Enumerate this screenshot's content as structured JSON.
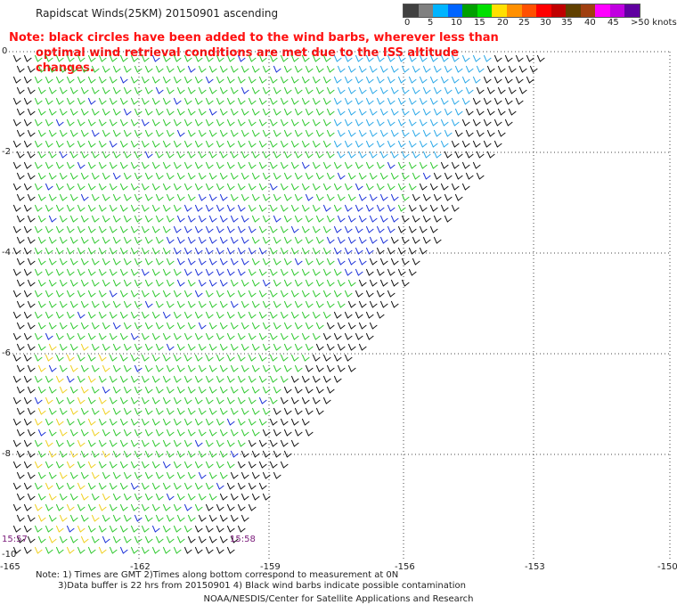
{
  "title": "Rapidscat Winds(25KM) 20150901 ascending",
  "note": {
    "line1": "Note: black circles have been added to the wind barbs, wherever less than",
    "line2": "optimal wind retrieval conditions are met due to the ISS altitude changes."
  },
  "legend": {
    "labels": [
      "0",
      "5",
      "10",
      "15",
      "20",
      "25",
      "30",
      "35",
      "40",
      "45",
      ">50 knots"
    ],
    "colors": [
      "#404040",
      "#808080",
      "#00b4ff",
      "#0064ff",
      "#00a000",
      "#00e000",
      "#ffe000",
      "#ff9000",
      "#ff5000",
      "#ff0000",
      "#c00000",
      "#604000",
      "#a04010",
      "#ff00ff",
      "#c000e0",
      "#6000a0"
    ]
  },
  "axes": {
    "lat_labels": [
      "0",
      "-2",
      "-4",
      "-6",
      "-8",
      "-10"
    ],
    "lon_labels": [
      "-165",
      "-162",
      "-159",
      "-156",
      "-153",
      "-150"
    ]
  },
  "time_labels": [
    "15:57",
    "15:58"
  ],
  "footnote": {
    "line1": "Note: 1) Times are GMT 2)Times along bottom correspond to measurement at 0N",
    "line2": "3)Data buffer is 22 hrs from 20150901 4) Black wind barbs indicate possible contamination"
  },
  "credit": "NOAA/NESDIS/Center for Satellite Applications and Research",
  "colors": {
    "green": "#2ec82e",
    "blue": "#1a30d8",
    "lightblue": "#2aa8e8",
    "black": "#111111",
    "yellow": "#f0d020",
    "red": "#ff1010"
  }
}
